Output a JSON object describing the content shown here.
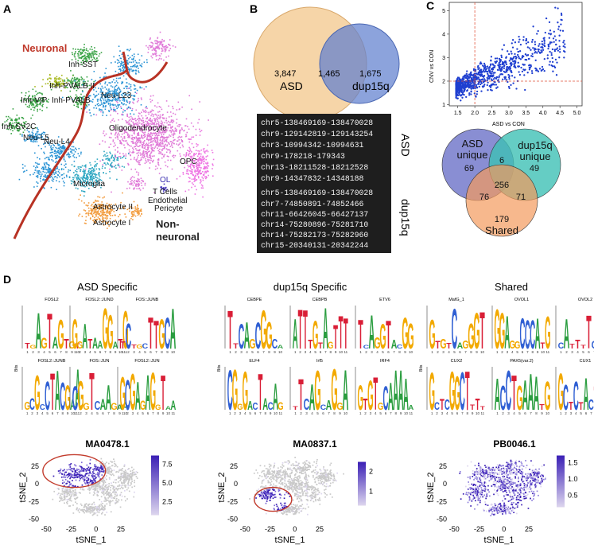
{
  "panel_labels": {
    "a": "A",
    "b": "B",
    "c": "C",
    "d": "D"
  },
  "panel_a": {
    "title_neuronal": "Neuronal",
    "title_nonneuronal_1": "Non-",
    "title_nonneuronal_2": "neuronal",
    "clusters": [
      "Inh-SST",
      "Inh-PVALB II",
      "Inh-VIP",
      "Inh-PVALB",
      "Neu-L23",
      "Inh-SV2C",
      "Neu-L5",
      "Neu-L4",
      "Oligodendrocyte",
      "OPC",
      "Microglia",
      "OL",
      "T Cells",
      "Endothelial",
      "Pericyte",
      "Astrocyte II",
      "Astrocyte I"
    ],
    "colors": {
      "neuronal": "#c0392b",
      "excitatory": "#2a93d5",
      "inh_green": "#3aa346",
      "inh_olive": "#a8b820",
      "oligo": "#e07ad8",
      "opc": "#ee74e3",
      "micro": "#2fa7c2",
      "astro": "#f29a3a",
      "tcell": "#4b3dbf"
    }
  },
  "panel_b": {
    "venn": {
      "asd_only": "3,847",
      "overlap": "1,465",
      "dup_only": "1,675",
      "asd_label": "ASD",
      "dup_label": "dup15q"
    },
    "asd_regions": [
      "chr5-138469169-138470028",
      "chr9-129142819-129143254",
      "chr3-10994342-10994631",
      "chr9-178218-179343",
      "chr13-18211528-18212528",
      "chr9-14347832-14348188"
    ],
    "asd_side_label": "ASD",
    "dup_regions": [
      "chr5-138469169-138470028",
      "chr7-74850891-74852466",
      "chr11-66426045-66427137",
      "chr14-75280896-75281710",
      "chr14-75282173-75282960",
      "chr15-20340131-20342244"
    ],
    "dup_side_label": "dup15q",
    "colors": {
      "asd": "#f6d5a8",
      "dup": "#6f8fd4",
      "box": "#1e1e1e"
    }
  },
  "panel_c": {
    "chart_data": {
      "type": "scatter",
      "xlabel": "ASD vs CON",
      "ylabel": "CNV vs CON",
      "x_ticks": [
        "1.5",
        "2.0",
        "2.5",
        "3.0",
        "3.5",
        "4.0",
        "4.5",
        "5.0"
      ],
      "y_ticks": [
        "1",
        "2",
        "3",
        "4",
        "5"
      ],
      "xlim": [
        1.25,
        5.15
      ],
      "ylim": [
        0.95,
        5.35
      ],
      "thresholds": {
        "x": 2.0,
        "y": 2.0
      },
      "point_color": "#1f3fd0",
      "threshold_color": "#e0533b"
    },
    "venn3": {
      "asd": {
        "label1": "ASD",
        "label2": "unique",
        "count": "69"
      },
      "dup": {
        "label1": "dup15q",
        "label2": "unique",
        "count": "49"
      },
      "shared": {
        "label": "Shared",
        "count": "179"
      },
      "asd_dup": "6",
      "asd_shared": "76",
      "dup_shared": "71",
      "center": "256",
      "colors": {
        "asd": "#6c72c8",
        "dup": "#3fc1b5",
        "shared": "#f39a5c"
      }
    }
  },
  "panel_d": {
    "groups": [
      {
        "title": "ASD Specific",
        "logos": [
          "FOSL2",
          "FOSL2::JUND",
          "FOS::JUNB",
          "FOSL2::JUNB",
          "FOS::JUN",
          "FOSL2::JUN"
        ],
        "motif_id": "MA0478.1",
        "scale_ticks": [
          "7.5",
          "5.0",
          "2.5"
        ]
      },
      {
        "title": "dup15q  Specific",
        "logos": [
          "CEBPE",
          "CEBPB",
          "ETV6",
          "ELF4",
          "Irf5",
          "IRF4"
        ],
        "motif_id": "MA0837.1",
        "scale_ticks": [
          "2",
          "1"
        ]
      },
      {
        "title": "Shared",
        "logos": [
          "MafG_1",
          "OVOL1",
          "OVOL2",
          "CUX2",
          "PAX5(var.2)",
          "CUX1"
        ],
        "motif_id": "PB0046.1",
        "scale_ticks": [
          "1.5",
          "1.0",
          "0.5"
        ]
      }
    ],
    "tsne": {
      "xlabel": "tSNE_1",
      "ylabel": "tSNE_2",
      "x_ticks": [
        "-50",
        "-25",
        "0",
        "25"
      ],
      "y_ticks": [
        "25",
        "0",
        "-25",
        "-50"
      ],
      "bits_label": "Bits"
    },
    "colors": {
      "A": "#2a9d3f",
      "C": "#2f5fd3",
      "G": "#f2a900",
      "T": "#d91e36",
      "gray": "#c9c9c9",
      "low": "#ddd6ee",
      "high": "#3a1fb5",
      "circle": "#c23b2c"
    }
  }
}
